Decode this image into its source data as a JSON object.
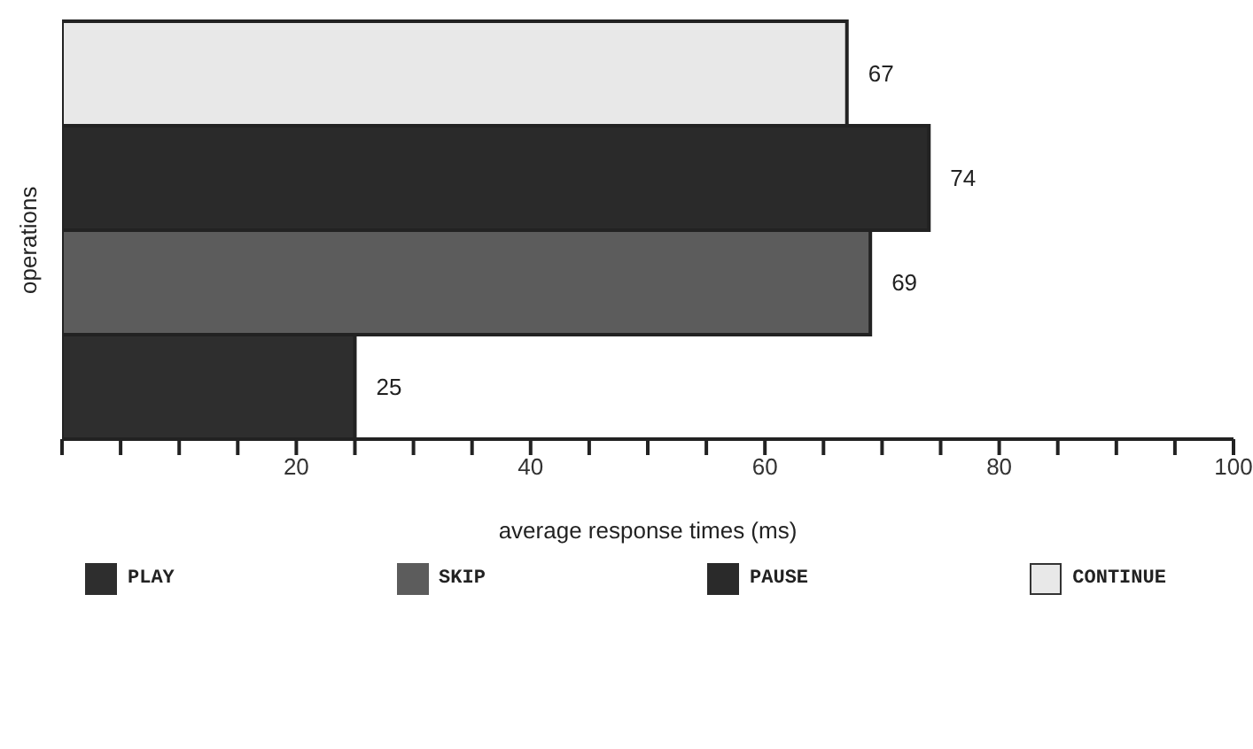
{
  "chart_data": {
    "type": "bar",
    "orientation": "horizontal",
    "stacked": true,
    "xlabel": "average response times (ms)",
    "ylabel": "operations",
    "categories": [
      null,
      null,
      null,
      null
    ],
    "series": [
      {
        "name": "PLAY",
        "color": "#2e2e2e",
        "values": [
          null,
          null,
          null,
          25
        ]
      },
      {
        "name": "SKIP",
        "color": "#5c5c5c",
        "values": [
          null,
          null,
          69,
          null
        ]
      },
      {
        "name": "PAUSE",
        "color": "#2a2a2a",
        "values": [
          null,
          74,
          null,
          null
        ]
      },
      {
        "name": "CONTINUE",
        "color": "#e8e8e8",
        "values": [
          67,
          null,
          null,
          null
        ]
      }
    ],
    "xlim": [
      0,
      100
    ],
    "xticks": [
      {
        "value": 0,
        "label": null
      },
      {
        "value": 5,
        "label": null
      },
      {
        "value": 10,
        "label": null
      },
      {
        "value": 15,
        "label": null
      },
      20,
      {
        "value": 25,
        "label": null
      },
      {
        "value": 30,
        "label": null
      },
      {
        "value": 35,
        "label": null
      },
      40,
      {
        "value": 45,
        "label": null
      },
      {
        "value": 50,
        "label": null
      },
      {
        "value": 55,
        "label": null
      },
      60,
      {
        "value": 65,
        "label": null
      },
      {
        "value": 70,
        "label": null
      },
      {
        "value": 75,
        "label": null
      },
      80,
      {
        "value": 85,
        "label": null
      },
      {
        "value": 90,
        "label": null
      },
      {
        "value": 95,
        "label": null
      },
      100
    ],
    "tick_labels": "x",
    "grid": false,
    "legend": "bottom",
    "data_labels": true
  }
}
